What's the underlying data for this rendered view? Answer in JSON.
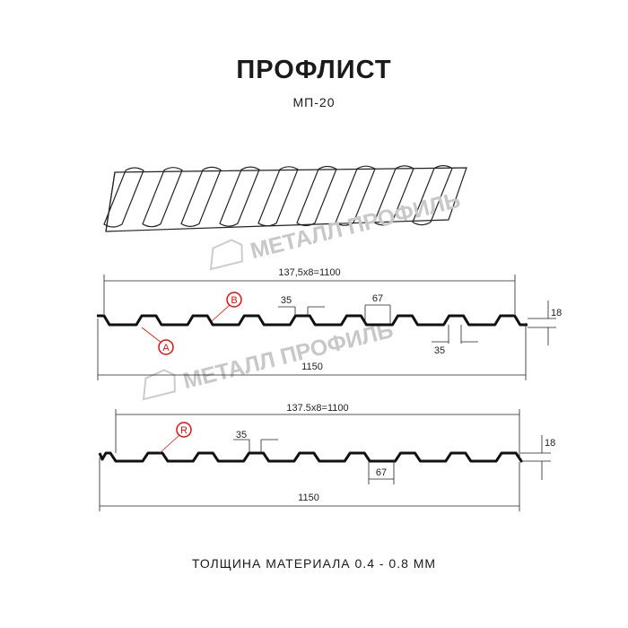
{
  "title": "ПРОФЛИСТ",
  "subtitle": "МП-20",
  "footer": "ТОЛЩИНА МАТЕРИАЛА 0.4 - 0.8 ММ",
  "watermark": "МЕТАЛЛ ПРОФИЛЬ",
  "profile1": {
    "pitch_label": "137,5x8=1100",
    "width_label": "1150",
    "crest_label": "35",
    "bottom_label": "35",
    "groove_label": "67",
    "height_label": "18",
    "marker_a": "A",
    "marker_b": "B"
  },
  "profile2": {
    "pitch_label": "137.5x8=1100",
    "width_label": "1150",
    "crest_label": "35",
    "groove_label": "67",
    "height_label": "18",
    "marker_r": "R"
  },
  "colors": {
    "marker": "#e01010",
    "line": "#111111",
    "watermark": "#cccccc"
  }
}
